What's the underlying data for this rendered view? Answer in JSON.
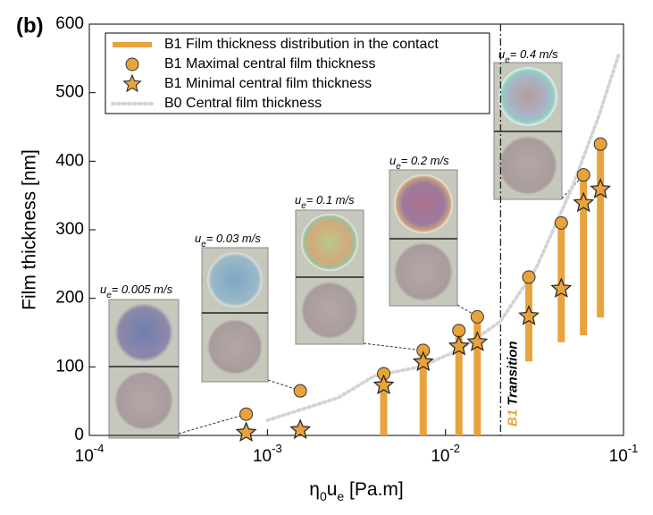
{
  "chart_data": {
    "type": "scatter",
    "panel_label": "(b)",
    "y_label": "Film thickness [nm]",
    "x_label": [
      {
        "text": "η"
      },
      {
        "text": "0",
        "sub": true
      },
      {
        "text": "u"
      },
      {
        "text": "e",
        "sub": true
      },
      {
        "text": " [Pa.m]"
      }
    ],
    "log_x": true,
    "xlim": [
      0.0001,
      0.1
    ],
    "xticks": [
      {
        "value": 0.0001,
        "base": "10",
        "exponent": "-4"
      },
      {
        "value": 0.001,
        "base": "10",
        "exponent": "-3"
      },
      {
        "value": 0.01,
        "base": "10",
        "exponent": "-2"
      },
      {
        "value": 0.1,
        "base": "10",
        "exponent": "-1"
      }
    ],
    "ylim": [
      0,
      600
    ],
    "yticks": [
      0,
      100,
      200,
      300,
      400,
      500,
      600
    ],
    "x": [
      0.00076,
      0.00153,
      0.0045,
      0.0075,
      0.0119,
      0.0151,
      0.0294,
      0.0447,
      0.0596,
      0.0742
    ],
    "series": [
      {
        "name": "B1 Film thickness distribution in the contact",
        "kind": "range",
        "color": "#E8A33D",
        "values": [
          null,
          null,
          0,
          0,
          0,
          0,
          108,
          136,
          146,
          172
        ]
      },
      {
        "name": "B1 Maximal central film thickness",
        "kind": "circle",
        "color": "#E8A33D",
        "values": [
          31,
          65,
          90,
          124,
          153,
          173,
          231,
          310,
          380,
          425
        ]
      },
      {
        "name": "B1 Minimal central film thickness",
        "kind": "star",
        "color": "#E8A33D",
        "values": [
          4,
          8,
          73,
          107,
          130,
          136,
          174,
          214,
          339,
          359
        ]
      },
      {
        "name": "B0 Central film thickness",
        "kind": "dotted",
        "color": "#d4d4d4",
        "x": [
          0.001,
          0.0025,
          0.004,
          0.0072,
          0.012,
          0.0203,
          0.0323,
          0.0513,
          0.0727,
          0.0935
        ],
        "values": [
          22,
          55,
          87,
          100,
          125,
          166,
          244,
          361,
          466,
          554
        ]
      }
    ],
    "transition": {
      "x": 0.0204,
      "label_prefix": "B1",
      "label": "Transition"
    },
    "inset_labels": {
      "symbol": "u",
      "subscript": "e",
      "texts": [
        "= 0.005 m/s",
        "= 0.03 m/s",
        "= 0.1 m/s",
        "= 0.2 m/s",
        "= 0.4 m/s"
      ]
    }
  }
}
